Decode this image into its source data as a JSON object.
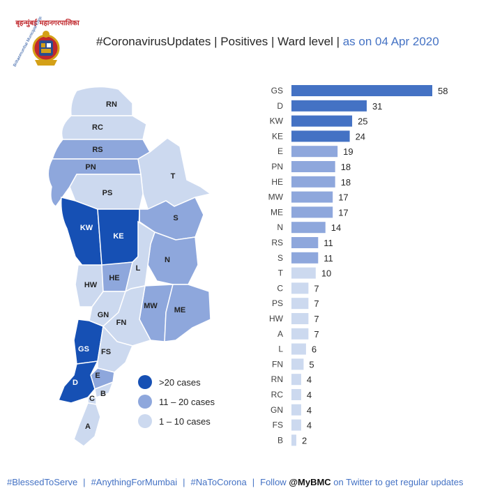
{
  "logo": {
    "top_text": "बृहन्मुंबई महानगरपालिका",
    "side_text": "Brihanmumbai Municipal Corporation"
  },
  "header": {
    "title": "#CoronavirusUpdates | Positives | Ward level |",
    "date": "as on 04 Apr 2020"
  },
  "legend": [
    {
      "label": ">20 cases",
      "color": "#1650b4"
    },
    {
      "label": "11 – 20 cases",
      "color": "#8ea7dc"
    },
    {
      "label": "1 – 10 cases",
      "color": "#ccd9ef"
    }
  ],
  "chart_data": {
    "type": "bar",
    "orientation": "horizontal",
    "categories": [
      "GS",
      "D",
      "KW",
      "KE",
      "E",
      "PN",
      "HE",
      "MW",
      "ME",
      "N",
      "RS",
      "S",
      "T",
      "C",
      "PS",
      "HW",
      "A",
      "L",
      "FN",
      "RN",
      "RC",
      "GN",
      "FS",
      "B"
    ],
    "values": [
      58,
      31,
      25,
      24,
      19,
      18,
      18,
      17,
      17,
      14,
      11,
      11,
      10,
      7,
      7,
      7,
      7,
      6,
      5,
      4,
      4,
      4,
      4,
      2
    ],
    "title": "",
    "xlabel": "",
    "ylabel": "",
    "xlim": [
      0,
      58
    ],
    "grid": false,
    "colors": {
      "high": "#4472c4",
      "mid": "#8ea7dc",
      "low": "#ccd9ef"
    }
  },
  "map": {
    "wards": [
      "RN",
      "RC",
      "RS",
      "PN",
      "T",
      "PS",
      "KW",
      "KE",
      "S",
      "N",
      "L",
      "HW",
      "HE",
      "MW",
      "ME",
      "GN",
      "FN",
      "GS",
      "FS",
      "E",
      "D",
      "C",
      "B",
      "A"
    ]
  },
  "footer": {
    "tag1": "#BlessedToServe",
    "tag2": "#AnythingForMumbai",
    "tag3": "#NaToCorona",
    "follow": "Follow",
    "handle": "@MyBMC",
    "rest": "on Twitter to get regular updates"
  }
}
